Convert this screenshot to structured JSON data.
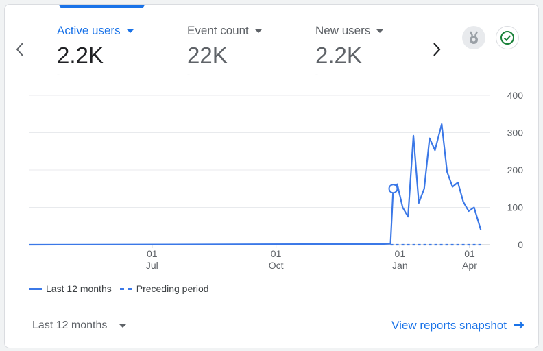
{
  "metrics": [
    {
      "label": "Active users",
      "value": "2.2K",
      "change": "-",
      "active": true
    },
    {
      "label": "Event count",
      "value": "22K",
      "change": "-",
      "active": false
    },
    {
      "label": "New users",
      "value": "2.2K",
      "change": "-",
      "active": false
    }
  ],
  "nav": {
    "prev_icon": "chevron-left-icon",
    "next_icon": "chevron-right-icon"
  },
  "icons": {
    "insights": "medal-icon",
    "status": "check-circle-icon"
  },
  "colors": {
    "accent": "#1a73e8",
    "line": "#3b78e7",
    "status": "#188038"
  },
  "chart_data": {
    "type": "line",
    "y_ticks": [
      "400",
      "300",
      "200",
      "100",
      "0"
    ],
    "ylim": [
      0,
      400
    ],
    "x_ticks": [
      {
        "day": "01",
        "month": "Jul"
      },
      {
        "day": "01",
        "month": "Oct"
      },
      {
        "day": "01",
        "month": "Jan"
      },
      {
        "day": "01",
        "month": "Apr"
      }
    ],
    "series": [
      {
        "name": "Last 12 months",
        "style": "solid",
        "points": [
          {
            "x": "2023-04-01",
            "y": 0
          },
          {
            "x": "2023-12-20",
            "y": 2
          },
          {
            "x": "2023-12-25",
            "y": 3
          },
          {
            "x": "2023-12-27",
            "y": 150
          },
          {
            "x": "2023-12-30",
            "y": 162
          },
          {
            "x": "2024-01-03",
            "y": 100
          },
          {
            "x": "2024-01-07",
            "y": 75
          },
          {
            "x": "2024-01-11",
            "y": 292
          },
          {
            "x": "2024-01-15",
            "y": 112
          },
          {
            "x": "2024-01-19",
            "y": 150
          },
          {
            "x": "2024-01-23",
            "y": 285
          },
          {
            "x": "2024-01-27",
            "y": 253
          },
          {
            "x": "2024-02-01",
            "y": 323
          },
          {
            "x": "2024-02-05",
            "y": 195
          },
          {
            "x": "2024-02-09",
            "y": 155
          },
          {
            "x": "2024-02-13",
            "y": 167
          },
          {
            "x": "2024-02-17",
            "y": 115
          },
          {
            "x": "2024-02-21",
            "y": 90
          },
          {
            "x": "2024-02-25",
            "y": 100
          },
          {
            "x": "2024-03-01",
            "y": 40
          }
        ]
      },
      {
        "name": "Preceding period",
        "style": "dashed",
        "points": [
          {
            "x": "2023-12-25",
            "y": 0
          },
          {
            "x": "2024-03-01",
            "y": 0
          }
        ]
      }
    ],
    "highlight": {
      "x": "2023-12-27",
      "y": 150
    }
  },
  "legend": [
    {
      "label": "Last 12 months",
      "style": "solid"
    },
    {
      "label": "Preceding period",
      "style": "dashed"
    }
  ],
  "footer": {
    "range_label": "Last 12 months",
    "link_label": "View reports snapshot"
  }
}
